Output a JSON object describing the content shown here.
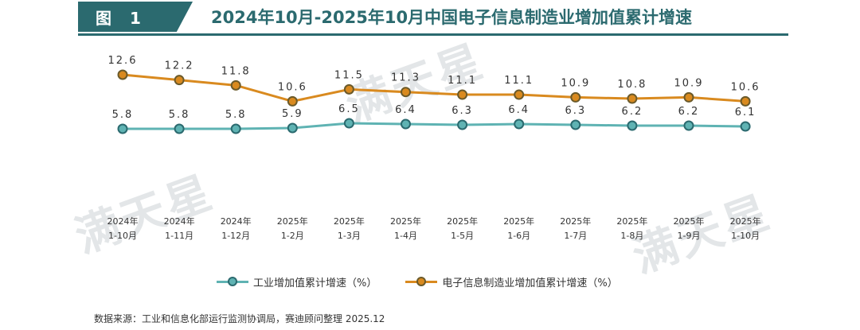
{
  "header": {
    "figure_tag": "图 1",
    "title": "2024年10月-2025年10月中国电子信息制造业增加值累计增速"
  },
  "watermark_text": "满天星",
  "chart_data": {
    "type": "line",
    "categories": [
      [
        "2024年",
        "1-10月"
      ],
      [
        "2024年",
        "1-11月"
      ],
      [
        "2024年",
        "1-12月"
      ],
      [
        "2025年",
        "1-2月"
      ],
      [
        "2025年",
        "1-3月"
      ],
      [
        "2025年",
        "1-4月"
      ],
      [
        "2025年",
        "1-5月"
      ],
      [
        "2025年",
        "1-6月"
      ],
      [
        "2025年",
        "1-7月"
      ],
      [
        "2025年",
        "1-8月"
      ],
      [
        "2025年",
        "1-9月"
      ],
      [
        "2025年",
        "1-10月"
      ]
    ],
    "series": [
      {
        "name": "工业增加值累计增速（%）",
        "values": [
          5.8,
          5.8,
          5.8,
          5.9,
          6.5,
          6.4,
          6.3,
          6.4,
          6.3,
          6.2,
          6.2,
          6.1
        ],
        "labels": [
          "5.8",
          "5.8",
          "5.8",
          "5.9",
          "6.5",
          "6.4",
          "6.3",
          "6.4",
          "6.3",
          "6.2",
          "6.2",
          "6.1"
        ],
        "color": "#5fb3b3",
        "marker_color": "#2b6a6f"
      },
      {
        "name": "电子信息制造业增加值累计增速（%）",
        "values": [
          12.6,
          12.2,
          11.8,
          10.6,
          11.5,
          11.3,
          11.1,
          11.1,
          10.9,
          10.8,
          10.9,
          10.6
        ],
        "labels": [
          "12.6",
          "12.2",
          "11.8",
          "10.6",
          "11.5",
          "11.3",
          "11.1",
          "11.1",
          "10.9",
          "10.8",
          "10.9",
          "10.6"
        ],
        "color": "#d98a1f",
        "marker_color": "#6b5a2a"
      }
    ],
    "grid": false,
    "legend_position": "bottom"
  },
  "legend": {
    "items": [
      "工业增加值累计增速（%）",
      "电子信息制造业增加值累计增速（%）"
    ]
  },
  "source_note": "数据来源：工业和信息化部运行监测协调局，赛迪顾问整理 2025.12"
}
